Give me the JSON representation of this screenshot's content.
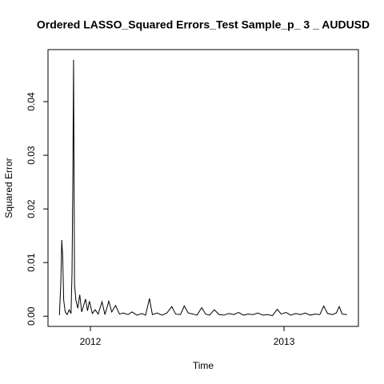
{
  "chart_data": {
    "type": "line",
    "title": "Ordered LASSO_Squared Errors_Test Sample_p_ 3 _ AUDUSD",
    "xlabel": "Time",
    "ylabel": "Squared Error",
    "x": [
      2011.84,
      2011.847,
      2011.852,
      2011.857,
      2011.862,
      2011.87,
      2011.88,
      2011.89,
      2011.9,
      2011.905,
      2011.909,
      2011.913,
      2011.918,
      2011.925,
      2011.935,
      2011.945,
      2011.955,
      2011.965,
      2011.975,
      2011.985,
      2011.995,
      2012.01,
      2012.025,
      2012.04,
      2012.06,
      2012.075,
      2012.095,
      2012.11,
      2012.13,
      2012.15,
      2012.17,
      2012.195,
      2012.215,
      2012.24,
      2012.265,
      2012.285,
      2012.305,
      2012.32,
      2012.345,
      2012.37,
      2012.395,
      2012.42,
      2012.44,
      2012.465,
      2012.485,
      2012.505,
      2012.53,
      2012.55,
      2012.575,
      2012.595,
      2012.615,
      2012.64,
      2012.665,
      2012.69,
      2012.715,
      2012.74,
      2012.765,
      2012.79,
      2012.815,
      2012.84,
      2012.865,
      2012.89,
      2012.915,
      2012.94,
      2012.965,
      2012.985,
      2013.01,
      2013.035,
      2013.06,
      2013.085,
      2013.11,
      2013.135,
      2013.16,
      2013.185,
      2013.205,
      2013.225,
      2013.25,
      2013.27,
      2013.285,
      2013.3,
      2013.325
    ],
    "series": [
      {
        "name": "Squared Error",
        "color": "#000000",
        "values": [
          0.0002,
          0.006,
          0.0142,
          0.011,
          0.003,
          0.0008,
          0.0003,
          0.0012,
          0.0005,
          0.008,
          0.024,
          0.0478,
          0.006,
          0.003,
          0.0015,
          0.004,
          0.0008,
          0.002,
          0.0032,
          0.001,
          0.0028,
          0.0005,
          0.0012,
          0.0004,
          0.0027,
          0.0003,
          0.0028,
          0.0008,
          0.002,
          0.0004,
          0.0006,
          0.0003,
          0.0008,
          0.0002,
          0.0005,
          0.0002,
          0.0033,
          0.0003,
          0.0006,
          0.0002,
          0.0006,
          0.0018,
          0.0004,
          0.0003,
          0.0019,
          0.0006,
          0.0004,
          0.0002,
          0.0016,
          0.0004,
          0.0002,
          0.0012,
          0.0003,
          0.0002,
          0.0005,
          0.0003,
          0.0007,
          0.0002,
          0.0004,
          0.0003,
          0.0006,
          0.0002,
          0.0003,
          0.0001,
          0.0013,
          0.0004,
          0.0007,
          0.0002,
          0.0005,
          0.0003,
          0.0006,
          0.0002,
          0.0004,
          0.0003,
          0.0019,
          0.0005,
          0.0003,
          0.0006,
          0.0018,
          0.0004,
          0.0003
        ]
      }
    ],
    "xlim": [
      2011.781,
      2013.384
    ],
    "xticks": [
      2012,
      2013
    ],
    "ylim": [
      -0.0019,
      0.0497
    ],
    "yticks": [
      {
        "value": 0,
        "label": "0.00"
      },
      {
        "value": 0.01,
        "label": "0.01"
      },
      {
        "value": 0.02,
        "label": "0.02"
      },
      {
        "value": 0.03,
        "label": "0.03"
      },
      {
        "value": 0.04,
        "label": "0.04"
      }
    ]
  }
}
